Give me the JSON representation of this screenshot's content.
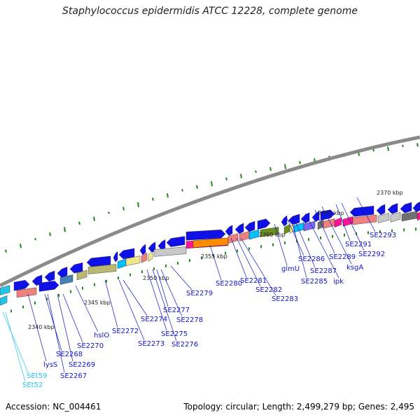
{
  "title": "Staphylococcus epidermidis ATCC 12228, complete genome",
  "footer": {
    "accession": "Accession: NC_004461",
    "summary": "Topology: circular; Length: 2,499,279 bp; Genes: 2,495"
  },
  "scale_labels": [
    "2340 kbp",
    "2345 kbp",
    "2350 kbp",
    "2355 kbp",
    "2360 kbp",
    "2365 kbp",
    "2370 kbp"
  ],
  "gene_labels": [
    "SEt59",
    "SEt52",
    "lysS",
    "SE2268",
    "SE2267",
    "SE2269",
    "SE2270",
    "hslO",
    "SE2272",
    "SE2273",
    "SE2274",
    "SE2275",
    "SE2276",
    "SE2277",
    "SE2278",
    "SE2279",
    "SE2280",
    "SE2281",
    "SE2282",
    "SE2283",
    "glmU",
    "SE2286",
    "SE2285",
    "SE2287",
    "ipk",
    "SE2289",
    "ksgA",
    "SE2291",
    "SE2292",
    "SE2293"
  ],
  "colors": {
    "backbone": "#8a8a8a",
    "gene_forward": "#1010e8",
    "label": "#1414c8",
    "rna_label": "#22c4e8",
    "tick": "#228822",
    "pink": "#f08080",
    "magenta": "#ff1493",
    "orange": "#ff8c00",
    "olive": "#6b8e23",
    "khaki": "#b8b870",
    "cream": "#f0e68c",
    "steel": "#4682b4",
    "lightgray": "#c8c8c8",
    "darkgray": "#707070",
    "cyan": "#00bfff",
    "purple": "#7b68ee"
  }
}
